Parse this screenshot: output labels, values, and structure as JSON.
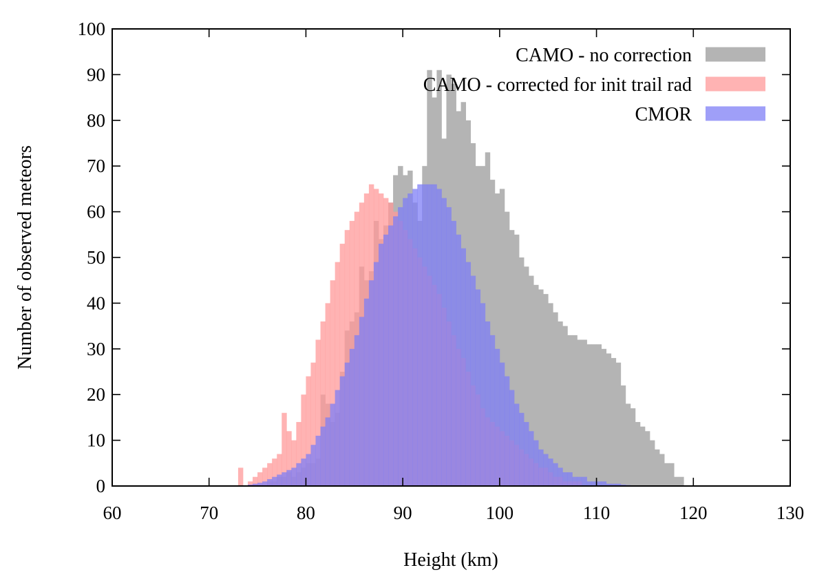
{
  "chart_data": {
    "type": "histogram",
    "xlabel": "Height (km)",
    "ylabel": "Number of observed meteors",
    "xlim": [
      60,
      130
    ],
    "ylim": [
      0,
      100
    ],
    "xticks": [
      60,
      70,
      80,
      90,
      100,
      110,
      120,
      130
    ],
    "yticks": [
      0,
      10,
      20,
      30,
      40,
      50,
      60,
      70,
      80,
      90,
      100
    ],
    "legend_position": "top-right",
    "bin_start": 70,
    "bin_width": 0.5,
    "series": [
      {
        "name": "CAMO - no correction",
        "color": "#b4b4b4",
        "opacity": 1.0,
        "values": [
          0,
          0,
          0,
          0,
          0,
          0,
          0,
          0,
          0,
          0,
          0,
          0,
          1,
          1,
          2,
          2,
          3,
          2,
          3,
          4,
          5,
          5,
          6,
          20,
          18,
          14,
          16,
          25,
          34,
          36,
          38,
          48,
          45,
          47,
          58,
          54,
          57,
          62,
          68,
          70,
          68,
          69,
          62,
          58,
          70,
          91,
          85,
          91,
          76,
          90,
          88,
          82,
          84,
          80,
          75,
          70,
          70,
          73,
          67,
          64,
          65,
          60,
          56,
          55,
          50,
          48,
          46,
          44,
          43,
          42,
          40,
          38,
          36,
          35,
          33,
          33,
          32,
          32,
          31,
          31,
          31,
          30,
          29,
          28,
          27,
          22,
          18,
          17,
          14,
          13,
          12,
          10,
          8,
          7,
          5,
          5,
          2,
          2,
          0,
          0,
          0,
          0
        ]
      },
      {
        "name": "CAMO - corrected for init trail rad",
        "color": "#ff9999",
        "opacity": 0.75,
        "values": [
          0,
          0,
          0,
          0,
          0,
          0,
          4,
          0,
          1,
          2,
          3,
          4,
          5,
          6,
          7,
          16,
          12,
          10,
          14,
          20,
          24,
          27,
          32,
          36,
          40,
          45,
          49,
          53,
          56,
          58,
          60,
          62,
          64,
          66,
          65,
          64,
          63,
          62,
          60,
          58,
          56,
          54,
          52,
          50,
          48,
          46,
          44,
          42,
          39,
          36,
          33,
          30,
          28,
          25,
          22,
          20,
          17,
          15,
          14,
          13,
          12,
          11,
          10,
          9,
          8,
          7,
          6,
          5,
          4,
          4,
          3,
          2,
          2,
          1,
          1,
          1,
          1,
          0,
          0,
          0,
          0,
          0,
          0,
          0,
          0,
          0,
          0,
          0,
          0,
          0,
          0
        ]
      },
      {
        "name": "CMOR",
        "color": "#7f7ff5",
        "opacity": 0.75,
        "values": [
          0,
          0,
          0,
          0,
          0,
          0,
          0,
          0,
          0.3,
          0.5,
          0.7,
          1,
          1.5,
          2,
          2.5,
          3,
          3.5,
          4,
          5,
          6,
          7,
          9,
          11,
          13,
          15,
          18,
          21,
          24,
          27,
          30,
          33,
          37,
          41,
          45,
          49,
          53,
          55,
          57,
          59,
          61,
          63,
          64,
          65,
          66,
          66,
          66,
          66,
          65,
          63,
          61,
          58,
          55,
          52,
          49,
          46,
          43,
          40,
          36,
          33,
          30,
          27,
          24,
          21,
          18,
          16,
          14,
          12,
          10,
          8,
          7,
          6,
          5,
          4,
          3,
          3,
          2,
          2,
          2,
          1,
          1,
          1,
          1,
          0.5,
          0.5,
          0.5,
          0.3,
          0.2,
          0.1,
          0,
          0,
          0,
          0,
          0,
          0,
          0,
          0
        ]
      }
    ]
  }
}
